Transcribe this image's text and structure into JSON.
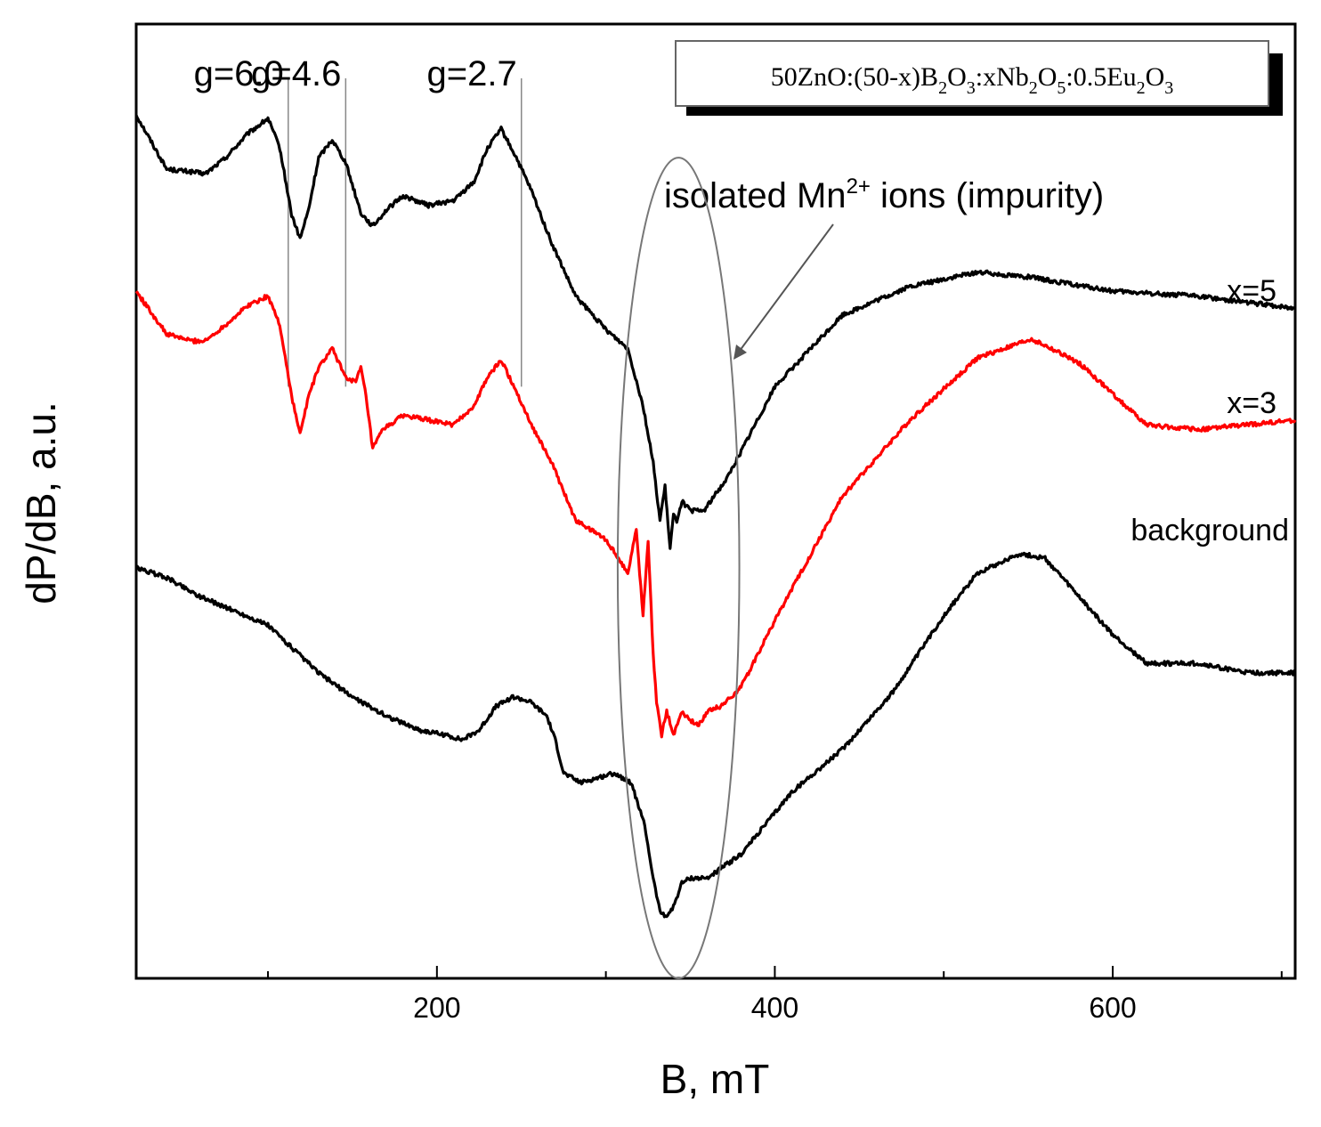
{
  "chart_data": {
    "type": "line",
    "title": "",
    "xlabel": "B, mT",
    "ylabel": "dP/dB, a.u.",
    "xlim": [
      22,
      708
    ],
    "ylim": [
      0,
      100
    ],
    "x_ticks_major": [
      200,
      400,
      600
    ],
    "x_ticks_minor": [
      100,
      300,
      500,
      700
    ],
    "y_ticks": [],
    "grid": false,
    "composition": {
      "base": "50ZnO:(50-x)B",
      "sub1": "2",
      "mid1": "O",
      "sub2": "3",
      "mid2": ":xNb",
      "sub3": "2",
      "mid3": "O",
      "sub4": "5",
      "mid4": ":0.5Eu",
      "sub5": "2",
      "mid5": "O",
      "sub6": "3"
    },
    "g_markers": [
      {
        "label": "g=6.0",
        "x": 112
      },
      {
        "label": "g=4.6",
        "x": 146
      },
      {
        "label": "g=2.7",
        "x": 250
      }
    ],
    "annotation": {
      "text_pre": "isolated Mn",
      "superscript": "2+",
      "text_post": " ions (impurity)",
      "ellipse_center": [
        343,
        43
      ],
      "ellipse_radius": [
        36,
        43
      ]
    },
    "series": [
      {
        "name": "x=5",
        "color": "#000000",
        "x": [
          22,
          40,
          55,
          63,
          75,
          88,
          100,
          107,
          114,
          119,
          124,
          130,
          138,
          146,
          155,
          162,
          170,
          180,
          195,
          210,
          222,
          230,
          238,
          247,
          256,
          268,
          282,
          300,
          313,
          322,
          328,
          332,
          335,
          338,
          340,
          342,
          345,
          350,
          358,
          372,
          400,
          440,
          480,
          520,
          550,
          600,
          650,
          708
        ],
        "y": [
          90.5,
          84.8,
          84.5,
          84.3,
          86.0,
          88.5,
          90.1,
          87.0,
          80.0,
          77.5,
          80.5,
          86.0,
          87.9,
          85.5,
          80.2,
          78.8,
          80.5,
          82.0,
          81.0,
          81.5,
          83.5,
          87.0,
          89.0,
          86.0,
          82.5,
          77.0,
          71.5,
          68.0,
          66.0,
          60.0,
          54.0,
          48.0,
          51.5,
          45.0,
          48.5,
          48.0,
          50.0,
          49.0,
          49.0,
          52.5,
          62.0,
          69.5,
          72.5,
          74.0,
          73.5,
          72.0,
          71.5,
          70.2
        ]
      },
      {
        "name": "x=3",
        "color": "#ff0000",
        "x": [
          22,
          40,
          55,
          63,
          75,
          88,
          100,
          107,
          114,
          119,
          124,
          130,
          138,
          146,
          152,
          155,
          158,
          162,
          168,
          180,
          195,
          210,
          222,
          230,
          238,
          247,
          256,
          268,
          282,
          300,
          313,
          318,
          322,
          325,
          328,
          330,
          333,
          336,
          340,
          345,
          350,
          355,
          360,
          368,
          380,
          400,
          440,
          480,
          520,
          552,
          580,
          620,
          650,
          708
        ],
        "y": [
          72.0,
          67.5,
          66.8,
          66.8,
          68.5,
          70.5,
          71.5,
          68.5,
          61.0,
          57.0,
          61.0,
          64.0,
          66.0,
          63.0,
          62.5,
          64.0,
          61.0,
          55.5,
          57.5,
          59.0,
          58.5,
          58.0,
          60.0,
          63.0,
          64.8,
          61.5,
          58.0,
          54.0,
          48.0,
          46.0,
          42.5,
          47.0,
          38.0,
          46.0,
          34.0,
          29.0,
          25.5,
          28.0,
          25.5,
          28.0,
          27.0,
          26.5,
          28.0,
          28.5,
          30.5,
          37.5,
          50.5,
          58.5,
          65.0,
          67.0,
          64.5,
          58.0,
          57.5,
          58.5
        ]
      },
      {
        "name": "background",
        "color": "#000000",
        "x": [
          22,
          40,
          60,
          80,
          100,
          115,
          130,
          150,
          170,
          190,
          205,
          215,
          225,
          235,
          245,
          255,
          265,
          270,
          275,
          285,
          295,
          305,
          315,
          323,
          328,
          332,
          336,
          340,
          345,
          350,
          360,
          380,
          410,
          440,
          470,
          500,
          520,
          545,
          560,
          580,
          600,
          620,
          650,
          680,
          708
        ],
        "y": [
          43.0,
          42.0,
          40.0,
          38.5,
          37.0,
          34.5,
          32.0,
          29.5,
          27.5,
          26.0,
          25.5,
          25.0,
          26.0,
          28.5,
          29.5,
          29.0,
          27.5,
          25.0,
          21.5,
          20.5,
          21.0,
          21.5,
          20.5,
          16.0,
          10.5,
          7.0,
          6.5,
          7.5,
          10.0,
          10.5,
          10.5,
          13.0,
          19.5,
          24.0,
          30.0,
          38.0,
          42.5,
          44.5,
          44.0,
          40.0,
          36.0,
          33.0,
          33.0,
          32.0,
          32.0
        ]
      }
    ]
  }
}
